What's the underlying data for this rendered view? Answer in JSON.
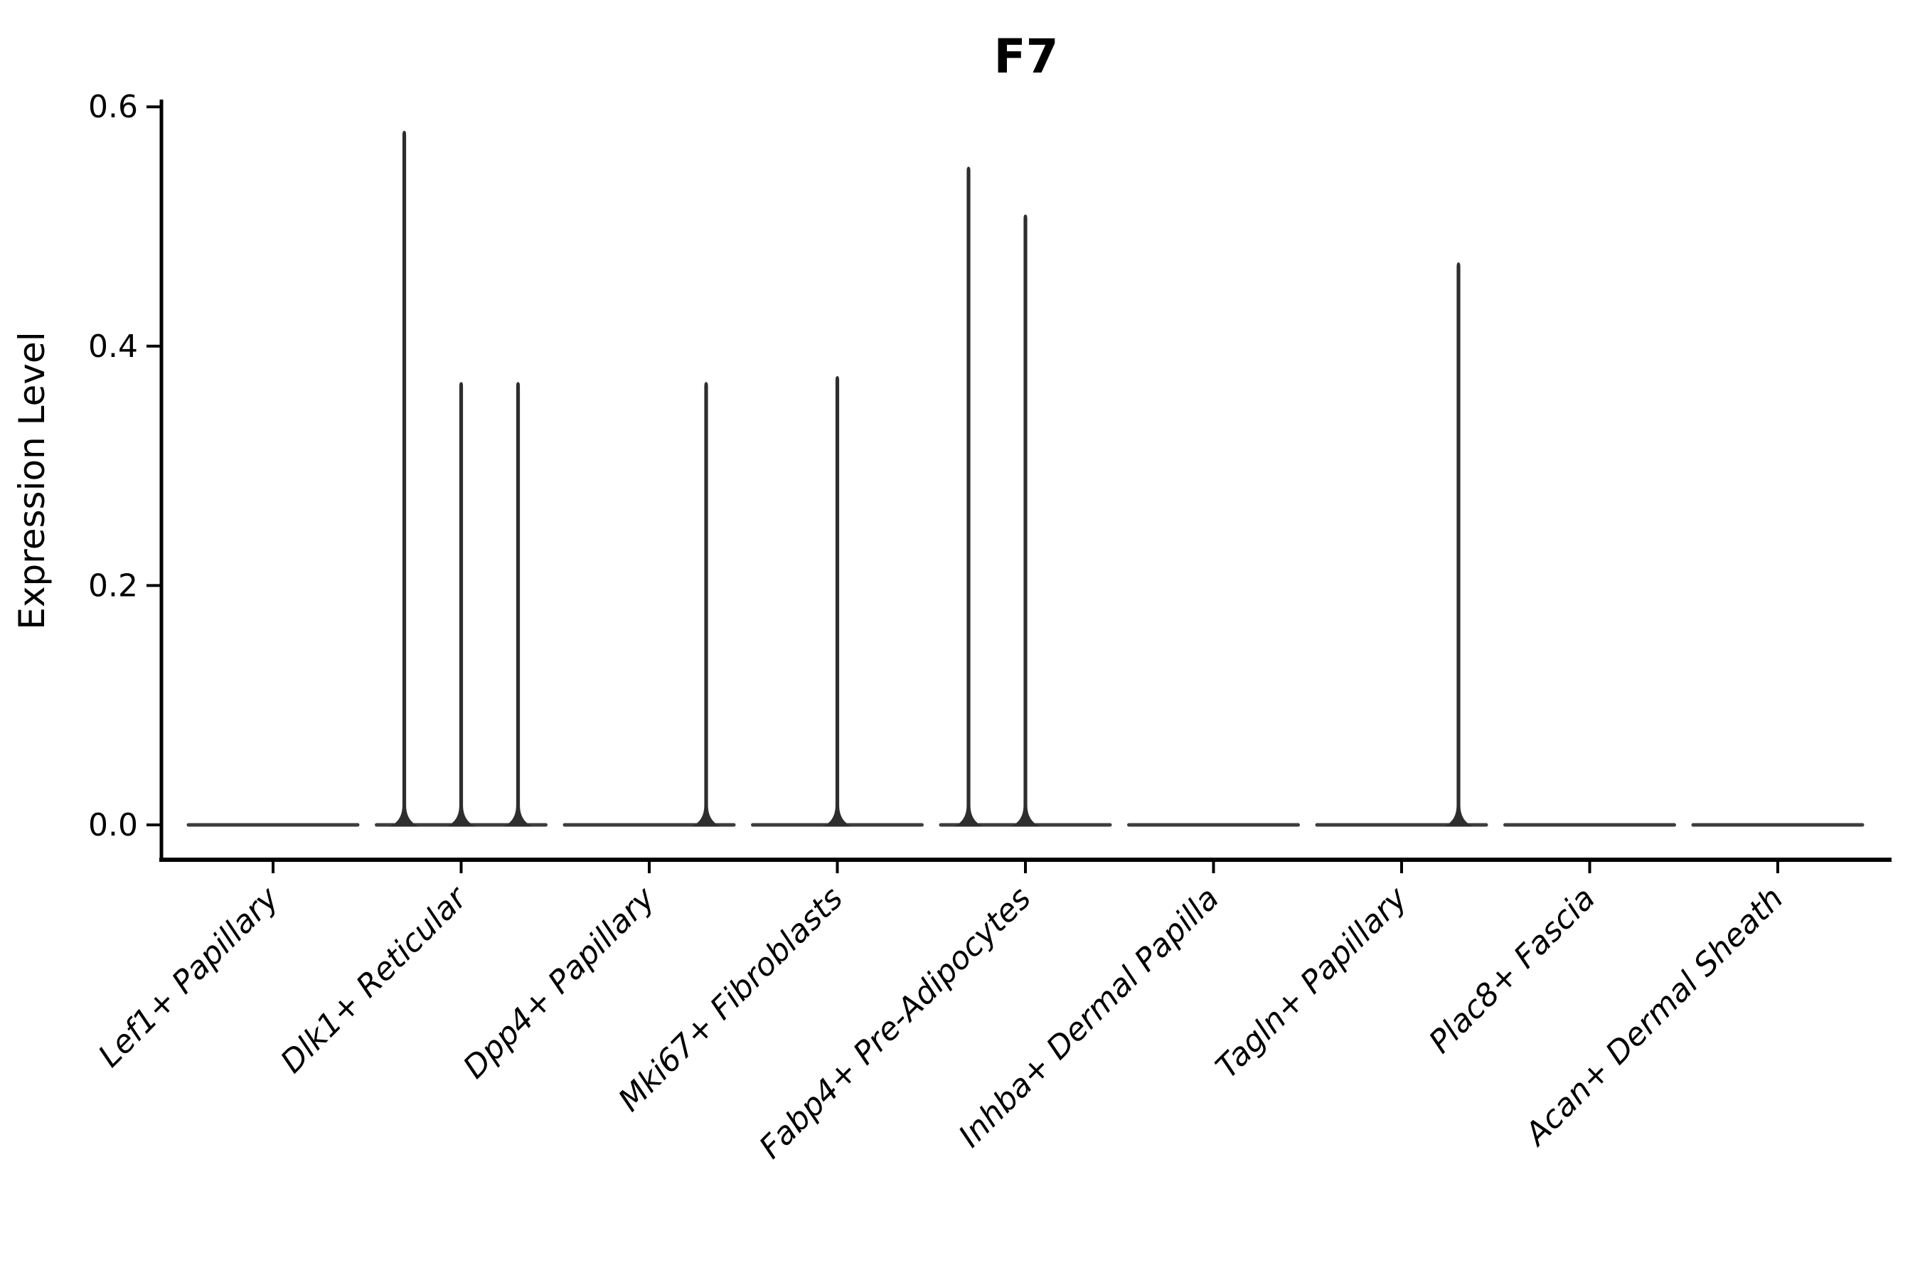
{
  "chart_data": {
    "type": "violin",
    "title": "F7",
    "xlabel": "",
    "ylabel": "Expression Level",
    "ylim": [
      0.0,
      0.62
    ],
    "ytick_labels": [
      "0.0",
      "0.2",
      "0.4",
      "0.6"
    ],
    "ytick_values": [
      0.0,
      0.2,
      0.4,
      0.6
    ],
    "grid": "off",
    "legend": "none",
    "label_style": "italic, rotated 45deg",
    "categories": [
      "Lef1+ Papillary",
      "Dlk1+ Reticular",
      "Dpp4+ Papillary",
      "Mki67+ Fibroblasts",
      "Fabp4+ Pre-Adipocytes",
      "Inhba+ Dermal Papilla",
      "Tagln+ Papillary",
      "Plac8+ Fascia",
      "Acan+ Dermal Sheath"
    ],
    "series": [
      {
        "name": "Lef1+ Papillary",
        "baseline_value": 0.0,
        "spike_maxima": {
          "left": null,
          "center": null,
          "right": null
        }
      },
      {
        "name": "Dlk1+ Reticular",
        "baseline_value": 0.0,
        "spike_maxima": {
          "left": 0.58,
          "center": 0.37,
          "right": 0.37
        }
      },
      {
        "name": "Dpp4+ Papillary",
        "baseline_value": 0.0,
        "spike_maxima": {
          "left": null,
          "center": null,
          "right": 0.37
        }
      },
      {
        "name": "Mki67+ Fibroblasts",
        "baseline_value": 0.0,
        "spike_maxima": {
          "left": null,
          "center": 0.375,
          "right": null
        }
      },
      {
        "name": "Fabp4+ Pre-Adipocytes",
        "baseline_value": 0.0,
        "spike_maxima": {
          "left": 0.55,
          "center": 0.51,
          "right": null
        }
      },
      {
        "name": "Inhba+ Dermal Papilla",
        "baseline_value": 0.0,
        "spike_maxima": {
          "left": null,
          "center": null,
          "right": null
        }
      },
      {
        "name": "Tagln+ Papillary",
        "baseline_value": 0.0,
        "spike_maxima": {
          "left": null,
          "center": null,
          "right": 0.47
        }
      },
      {
        "name": "Plac8+ Fascia",
        "baseline_value": 0.0,
        "spike_maxima": {
          "left": null,
          "center": null,
          "right": null
        }
      },
      {
        "name": "Acan+ Dermal Sheath",
        "baseline_value": 0.0,
        "spike_maxima": {
          "left": null,
          "center": null,
          "right": null
        }
      }
    ],
    "colors": {
      "axis": "#000000",
      "violin_base": "#3d3d3d",
      "violin_spike": "#2e2e2e",
      "text": "#000000",
      "background": "#ffffff"
    }
  }
}
